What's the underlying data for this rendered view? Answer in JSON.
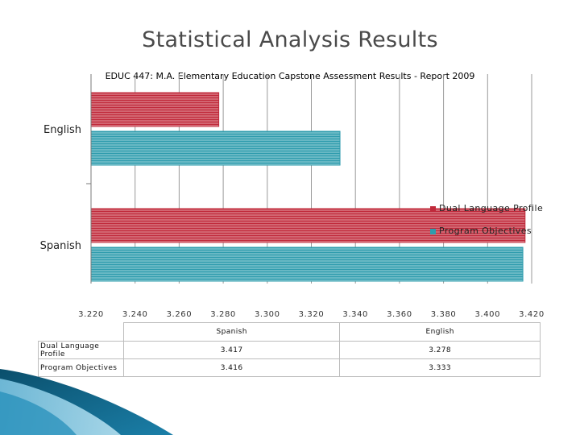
{
  "slide": {
    "title": "Statistical Analysis Results"
  },
  "colors": {
    "dual_language": "#c0293a",
    "program_objectives": "#2e9cad",
    "stripe": "#ffffff",
    "deco_dark": "#0c5676",
    "deco_light": "#3fa6cf"
  },
  "chart_data": {
    "type": "bar",
    "orientation": "horizontal",
    "title": "EDUC 447: M.A. Elementary Education Capstone Assessment Results - Report 2009",
    "categories": [
      "English",
      "Spanish"
    ],
    "series": [
      {
        "name": "Dual Language Profile",
        "values": [
          3.278,
          3.417
        ],
        "color": "#c0293a"
      },
      {
        "name": "Program Objectives",
        "values": [
          3.333,
          3.416
        ],
        "color": "#2e9cad"
      }
    ],
    "xlim": [
      3.22,
      3.42
    ],
    "xticks": [
      "3.220",
      "3.240",
      "3.260",
      "3.280",
      "3.300",
      "3.320",
      "3.340",
      "3.360",
      "3.380",
      "3.400",
      "3.420"
    ],
    "grid": true,
    "legend": "right"
  },
  "table": {
    "columns": [
      "Spanish",
      "English"
    ],
    "rows": [
      {
        "label": "Dual Language Profile",
        "values": [
          "3.417",
          "3.278"
        ]
      },
      {
        "label": "Program Objectives",
        "values": [
          "3.416",
          "3.333"
        ]
      }
    ]
  }
}
